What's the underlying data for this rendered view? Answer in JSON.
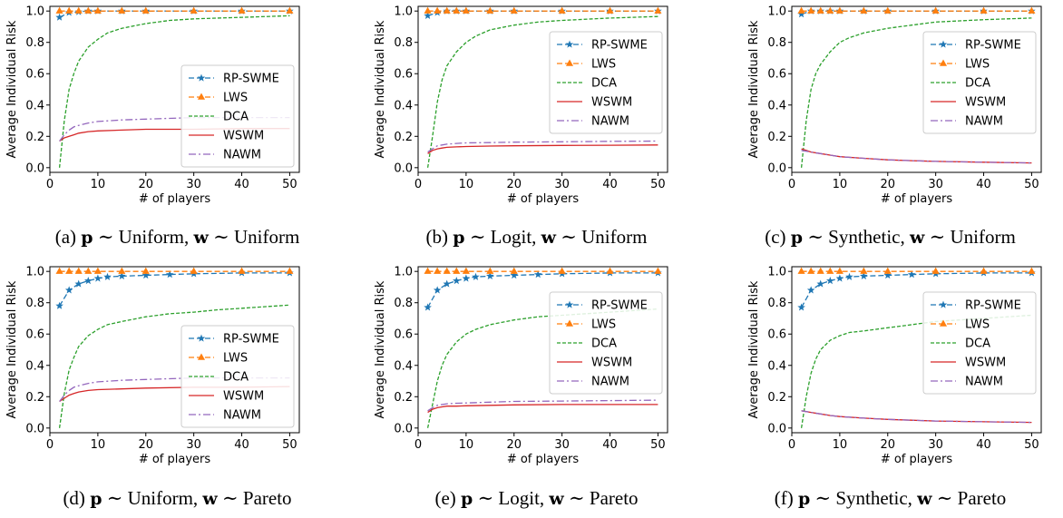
{
  "chart_data": [
    {
      "type": "line",
      "subplot": "a",
      "caption": {
        "label": "(a)",
        "p_var": "p",
        "p_dist": "Uniform",
        "w_var": "w",
        "w_dist": "Uniform",
        "sim": "∼",
        "sep": ","
      },
      "xlabel": "# of players",
      "ylabel": "Average Individual Risk",
      "xlim": [
        0,
        52
      ],
      "ylim": [
        -0.03,
        1.03
      ],
      "xticks": [
        0,
        10,
        20,
        30,
        40,
        50
      ],
      "yticks": [
        0.0,
        0.2,
        0.4,
        0.6,
        0.8,
        1.0
      ],
      "legend": "lower-right",
      "series": [
        {
          "name": "RP-SWME",
          "x": [
            2,
            4,
            6,
            8,
            10,
            15,
            20,
            30,
            40,
            50
          ],
          "y": [
            0.96,
            0.99,
            0.995,
            1,
            1,
            1,
            1,
            1,
            1,
            1
          ]
        },
        {
          "name": "LWS",
          "x": [
            2,
            4,
            6,
            8,
            10,
            15,
            20,
            30,
            40,
            50
          ],
          "y": [
            1,
            1,
            1,
            1,
            1,
            1,
            1,
            1,
            1,
            1
          ]
        },
        {
          "name": "DCA",
          "x": [
            2,
            3,
            4,
            5,
            6,
            8,
            10,
            12,
            15,
            20,
            25,
            30,
            40,
            50
          ],
          "y": [
            0.0,
            0.3,
            0.5,
            0.6,
            0.68,
            0.77,
            0.82,
            0.86,
            0.89,
            0.92,
            0.94,
            0.95,
            0.96,
            0.97
          ]
        },
        {
          "name": "WSWM",
          "x": [
            2,
            3,
            4,
            5,
            6,
            8,
            10,
            15,
            20,
            30,
            40,
            50
          ],
          "y": [
            0.17,
            0.19,
            0.2,
            0.21,
            0.22,
            0.23,
            0.235,
            0.24,
            0.245,
            0.245,
            0.25,
            0.25
          ]
        },
        {
          "name": "NAWM",
          "x": [
            2,
            3,
            4,
            5,
            6,
            8,
            10,
            15,
            20,
            30,
            40,
            50
          ],
          "y": [
            0.17,
            0.21,
            0.24,
            0.26,
            0.27,
            0.285,
            0.295,
            0.305,
            0.31,
            0.32,
            0.32,
            0.32
          ]
        }
      ]
    },
    {
      "type": "line",
      "subplot": "b",
      "caption": {
        "label": "(b)",
        "p_var": "p",
        "p_dist": "Logit",
        "w_var": "w",
        "w_dist": "Uniform",
        "sim": "∼",
        "sep": ","
      },
      "xlabel": "# of players",
      "ylabel": "Average Individual Risk",
      "xlim": [
        0,
        52
      ],
      "ylim": [
        -0.03,
        1.03
      ],
      "xticks": [
        0,
        10,
        20,
        30,
        40,
        50
      ],
      "yticks": [
        0.0,
        0.2,
        0.4,
        0.6,
        0.8,
        1.0
      ],
      "legend": "center-right",
      "series": [
        {
          "name": "RP-SWME",
          "x": [
            2,
            4,
            6,
            8,
            10,
            15,
            20,
            30,
            40,
            50
          ],
          "y": [
            0.97,
            0.99,
            1,
            1,
            1,
            1,
            1,
            1,
            1,
            1
          ]
        },
        {
          "name": "LWS",
          "x": [
            2,
            4,
            6,
            8,
            10,
            15,
            20,
            30,
            40,
            50
          ],
          "y": [
            1,
            1,
            1,
            1,
            1,
            1,
            1,
            1,
            1,
            1
          ]
        },
        {
          "name": "DCA",
          "x": [
            2,
            3,
            4,
            5,
            6,
            8,
            10,
            12,
            15,
            20,
            25,
            30,
            40,
            50
          ],
          "y": [
            0.0,
            0.2,
            0.42,
            0.56,
            0.65,
            0.74,
            0.8,
            0.84,
            0.88,
            0.91,
            0.93,
            0.94,
            0.955,
            0.965
          ]
        },
        {
          "name": "WSWM",
          "x": [
            2,
            3,
            4,
            5,
            6,
            8,
            10,
            15,
            20,
            30,
            40,
            50
          ],
          "y": [
            0.09,
            0.11,
            0.12,
            0.125,
            0.13,
            0.133,
            0.135,
            0.138,
            0.14,
            0.142,
            0.143,
            0.145
          ]
        },
        {
          "name": "NAWM",
          "x": [
            2,
            3,
            4,
            5,
            6,
            8,
            10,
            15,
            20,
            30,
            40,
            50
          ],
          "y": [
            0.1,
            0.12,
            0.14,
            0.145,
            0.15,
            0.155,
            0.158,
            0.16,
            0.163,
            0.165,
            0.168,
            0.17
          ]
        }
      ]
    },
    {
      "type": "line",
      "subplot": "c",
      "caption": {
        "label": "(c)",
        "p_var": "p",
        "p_dist": "Synthetic",
        "w_var": "w",
        "w_dist": "Uniform",
        "sim": "∼",
        "sep": ","
      },
      "xlabel": "# of players",
      "ylabel": "Average Individual Risk",
      "xlim": [
        0,
        52
      ],
      "ylim": [
        -0.03,
        1.03
      ],
      "xticks": [
        0,
        10,
        20,
        30,
        40,
        50
      ],
      "yticks": [
        0.0,
        0.2,
        0.4,
        0.6,
        0.8,
        1.0
      ],
      "legend": "center-right",
      "series": [
        {
          "name": "RP-SWME",
          "x": [
            2,
            4,
            6,
            8,
            10,
            15,
            20,
            30,
            40,
            50
          ],
          "y": [
            0.98,
            1,
            1,
            1,
            1,
            1,
            1,
            1,
            1,
            1
          ]
        },
        {
          "name": "LWS",
          "x": [
            2,
            4,
            6,
            8,
            10,
            15,
            20,
            30,
            40,
            50
          ],
          "y": [
            1,
            1,
            1,
            1,
            1,
            1,
            1,
            1,
            1,
            1
          ]
        },
        {
          "name": "DCA",
          "x": [
            2,
            3,
            4,
            5,
            6,
            8,
            10,
            12,
            15,
            20,
            25,
            30,
            40,
            50
          ],
          "y": [
            0.0,
            0.3,
            0.5,
            0.6,
            0.66,
            0.74,
            0.8,
            0.83,
            0.86,
            0.89,
            0.91,
            0.93,
            0.945,
            0.955
          ]
        },
        {
          "name": "WSWM",
          "x": [
            2,
            3,
            4,
            6,
            8,
            10,
            15,
            20,
            25,
            30,
            40,
            50
          ],
          "y": [
            0.12,
            0.11,
            0.1,
            0.09,
            0.08,
            0.07,
            0.06,
            0.05,
            0.045,
            0.04,
            0.035,
            0.03
          ]
        },
        {
          "name": "NAWM",
          "x": [
            2,
            3,
            4,
            6,
            8,
            10,
            15,
            20,
            25,
            30,
            40,
            50
          ],
          "y": [
            0.11,
            0.105,
            0.1,
            0.09,
            0.08,
            0.07,
            0.06,
            0.05,
            0.045,
            0.04,
            0.035,
            0.03
          ]
        }
      ]
    },
    {
      "type": "line",
      "subplot": "d",
      "caption": {
        "label": "(d)",
        "p_var": "p",
        "p_dist": "Uniform",
        "w_var": "w",
        "w_dist": "Pareto",
        "sim": "∼",
        "sep": ","
      },
      "xlabel": "# of players",
      "ylabel": "Average Individual Risk",
      "xlim": [
        0,
        52
      ],
      "ylim": [
        -0.03,
        1.03
      ],
      "xticks": [
        0,
        10,
        20,
        30,
        40,
        50
      ],
      "yticks": [
        0.0,
        0.2,
        0.4,
        0.6,
        0.8,
        1.0
      ],
      "legend": "lower-right",
      "series": [
        {
          "name": "RP-SWME",
          "x": [
            2,
            4,
            6,
            8,
            10,
            12,
            15,
            20,
            25,
            30,
            40,
            50
          ],
          "y": [
            0.78,
            0.88,
            0.92,
            0.94,
            0.955,
            0.965,
            0.97,
            0.975,
            0.98,
            0.985,
            0.99,
            0.99
          ]
        },
        {
          "name": "LWS",
          "x": [
            2,
            4,
            6,
            8,
            10,
            15,
            20,
            30,
            40,
            50
          ],
          "y": [
            1,
            1,
            1,
            1,
            1,
            1,
            1,
            1,
            1,
            1
          ]
        },
        {
          "name": "DCA",
          "x": [
            2,
            3,
            4,
            5,
            6,
            8,
            10,
            12,
            15,
            20,
            25,
            30,
            35,
            40,
            45,
            50
          ],
          "y": [
            0.0,
            0.22,
            0.37,
            0.45,
            0.52,
            0.59,
            0.63,
            0.66,
            0.68,
            0.71,
            0.73,
            0.74,
            0.755,
            0.765,
            0.775,
            0.785
          ]
        },
        {
          "name": "WSWM",
          "x": [
            2,
            3,
            4,
            5,
            6,
            8,
            10,
            15,
            20,
            30,
            40,
            50
          ],
          "y": [
            0.17,
            0.19,
            0.21,
            0.22,
            0.23,
            0.24,
            0.245,
            0.25,
            0.255,
            0.26,
            0.26,
            0.265
          ]
        },
        {
          "name": "NAWM",
          "x": [
            2,
            3,
            4,
            5,
            6,
            8,
            10,
            15,
            20,
            30,
            40,
            50
          ],
          "y": [
            0.17,
            0.21,
            0.24,
            0.26,
            0.27,
            0.285,
            0.295,
            0.305,
            0.31,
            0.32,
            0.32,
            0.32
          ]
        }
      ]
    },
    {
      "type": "line",
      "subplot": "e",
      "caption": {
        "label": "(e)",
        "p_var": "p",
        "p_dist": "Logit",
        "w_var": "w",
        "w_dist": "Pareto",
        "sim": "∼",
        "sep": ","
      },
      "xlabel": "# of players",
      "ylabel": "Average Individual Risk",
      "xlim": [
        0,
        52
      ],
      "ylim": [
        -0.03,
        1.03
      ],
      "xticks": [
        0,
        10,
        20,
        30,
        40,
        50
      ],
      "yticks": [
        0.0,
        0.2,
        0.4,
        0.6,
        0.8,
        1.0
      ],
      "legend": "center-right",
      "series": [
        {
          "name": "RP-SWME",
          "x": [
            2,
            4,
            6,
            8,
            10,
            12,
            15,
            20,
            25,
            30,
            40,
            50
          ],
          "y": [
            0.77,
            0.88,
            0.92,
            0.94,
            0.955,
            0.965,
            0.97,
            0.975,
            0.98,
            0.985,
            0.99,
            0.99
          ]
        },
        {
          "name": "LWS",
          "x": [
            2,
            4,
            6,
            8,
            10,
            15,
            20,
            30,
            40,
            50
          ],
          "y": [
            1,
            1,
            1,
            1,
            1,
            1,
            1,
            1,
            1,
            1
          ]
        },
        {
          "name": "DCA",
          "x": [
            2,
            3,
            4,
            5,
            6,
            8,
            10,
            12,
            15,
            20,
            25,
            30,
            35,
            40,
            45,
            50
          ],
          "y": [
            0.0,
            0.15,
            0.3,
            0.4,
            0.47,
            0.55,
            0.6,
            0.63,
            0.66,
            0.69,
            0.71,
            0.72,
            0.73,
            0.74,
            0.75,
            0.76
          ]
        },
        {
          "name": "WSWM",
          "x": [
            2,
            3,
            4,
            5,
            6,
            8,
            10,
            15,
            20,
            30,
            40,
            50
          ],
          "y": [
            0.1,
            0.12,
            0.13,
            0.135,
            0.14,
            0.14,
            0.142,
            0.145,
            0.148,
            0.15,
            0.15,
            0.15
          ]
        },
        {
          "name": "NAWM",
          "x": [
            2,
            3,
            4,
            5,
            6,
            8,
            10,
            15,
            20,
            30,
            40,
            50
          ],
          "y": [
            0.11,
            0.13,
            0.145,
            0.15,
            0.155,
            0.158,
            0.16,
            0.165,
            0.17,
            0.172,
            0.175,
            0.178
          ]
        }
      ]
    },
    {
      "type": "line",
      "subplot": "f",
      "caption": {
        "label": "(f)",
        "p_var": "p",
        "p_dist": "Synthetic",
        "w_var": "w",
        "w_dist": "Pareto",
        "sim": "∼",
        "sep": ","
      },
      "xlabel": "# of players",
      "ylabel": "Average Individual Risk",
      "xlim": [
        0,
        52
      ],
      "ylim": [
        -0.03,
        1.03
      ],
      "xticks": [
        0,
        10,
        20,
        30,
        40,
        50
      ],
      "yticks": [
        0.0,
        0.2,
        0.4,
        0.6,
        0.8,
        1.0
      ],
      "legend": "center-right",
      "series": [
        {
          "name": "RP-SWME",
          "x": [
            2,
            4,
            6,
            8,
            10,
            12,
            15,
            20,
            25,
            30,
            40,
            50
          ],
          "y": [
            0.77,
            0.88,
            0.92,
            0.94,
            0.955,
            0.965,
            0.97,
            0.975,
            0.98,
            0.985,
            0.99,
            0.99
          ]
        },
        {
          "name": "LWS",
          "x": [
            2,
            4,
            6,
            8,
            10,
            15,
            20,
            30,
            40,
            50
          ],
          "y": [
            1,
            1,
            1,
            1,
            1,
            1,
            1,
            1,
            1,
            1
          ]
        },
        {
          "name": "DCA",
          "x": [
            2,
            3,
            4,
            5,
            6,
            8,
            10,
            12,
            15,
            20,
            25,
            30,
            35,
            40,
            45,
            50
          ],
          "y": [
            0.0,
            0.2,
            0.35,
            0.44,
            0.5,
            0.56,
            0.59,
            0.61,
            0.62,
            0.64,
            0.66,
            0.68,
            0.69,
            0.7,
            0.71,
            0.72
          ]
        },
        {
          "name": "WSWM",
          "x": [
            2,
            3,
            4,
            6,
            8,
            10,
            15,
            20,
            25,
            30,
            40,
            50
          ],
          "y": [
            0.11,
            0.105,
            0.1,
            0.09,
            0.08,
            0.073,
            0.063,
            0.055,
            0.05,
            0.045,
            0.04,
            0.036
          ]
        },
        {
          "name": "NAWM",
          "x": [
            2,
            3,
            4,
            6,
            8,
            10,
            15,
            20,
            25,
            30,
            40,
            50
          ],
          "y": [
            0.11,
            0.105,
            0.1,
            0.09,
            0.08,
            0.073,
            0.063,
            0.055,
            0.05,
            0.045,
            0.04,
            0.036
          ]
        }
      ]
    }
  ],
  "styles": {
    "RP-SWME": {
      "color": "#1f77b4",
      "dash": "6,3",
      "marker": "star"
    },
    "LWS": {
      "color": "#ff7f0e",
      "dash": "6,3",
      "marker": "triangle"
    },
    "DCA": {
      "color": "#2ca02c",
      "dash": "4,2",
      "marker": "none"
    },
    "WSWM": {
      "color": "#d62728",
      "dash": "",
      "marker": "none"
    },
    "NAWM": {
      "color": "#9467bd",
      "dash": "8,3,2,3",
      "marker": "none"
    }
  }
}
